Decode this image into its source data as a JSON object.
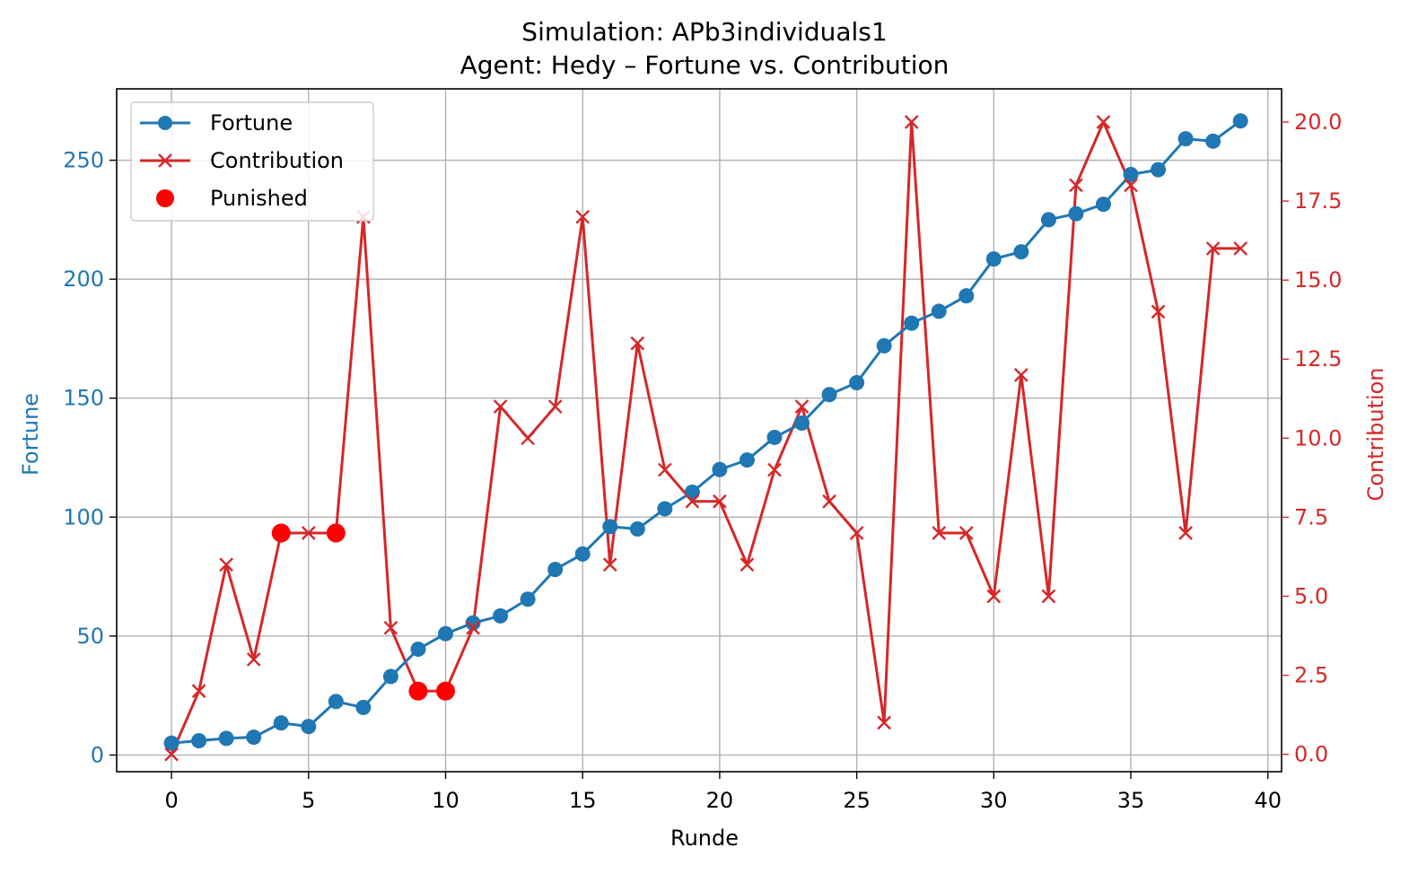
{
  "chart_data": {
    "type": "line",
    "title_line1": "Simulation: APb3individuals1",
    "title_line2": "Agent: Hedy – Fortune vs. Contribution",
    "xlabel": "Runde",
    "ylabel_left": "Fortune",
    "ylabel_right": "Contribution",
    "xlim": [
      -2,
      40.5
    ],
    "ylim_left": [
      -7,
      280
    ],
    "ylim_right": [
      -0.55,
      21.05
    ],
    "x_ticks": [
      0,
      5,
      10,
      15,
      20,
      25,
      30,
      35,
      40
    ],
    "y_left_ticks": [
      0,
      50,
      100,
      150,
      200,
      250
    ],
    "y_right_ticks": [
      0.0,
      2.5,
      5.0,
      7.5,
      10.0,
      12.5,
      15.0,
      17.5,
      20.0
    ],
    "grid": true,
    "legend_position": "upper-left",
    "colors": {
      "fortune": "#1f77b4",
      "contribution": "#d62728",
      "punished": "#ff0000"
    },
    "x": [
      0,
      1,
      2,
      3,
      4,
      5,
      6,
      7,
      8,
      9,
      10,
      11,
      12,
      13,
      14,
      15,
      16,
      17,
      18,
      19,
      20,
      21,
      22,
      23,
      24,
      25,
      26,
      27,
      28,
      29,
      30,
      31,
      32,
      33,
      34,
      35,
      36,
      37,
      38,
      39
    ],
    "series": [
      {
        "name": "Fortune",
        "axis": "left",
        "marker": "circle",
        "values": [
          5,
          6,
          7,
          7.5,
          13.5,
          12,
          22.5,
          20,
          33,
          44.5,
          51,
          55.5,
          58.5,
          65.5,
          78,
          84.5,
          96,
          95,
          103.5,
          110.5,
          120,
          124,
          133.5,
          139.5,
          151.5,
          156.5,
          172,
          181.5,
          186.5,
          193,
          208.5,
          211.5,
          225,
          227.5,
          231.5,
          244,
          246,
          259,
          258,
          266.5
        ]
      },
      {
        "name": "Contribution",
        "axis": "right",
        "marker": "x",
        "values": [
          0,
          2,
          6,
          3,
          7,
          7,
          7,
          17,
          4,
          2,
          2,
          4,
          11,
          10,
          11,
          17,
          6,
          13,
          9,
          8,
          8,
          6,
          9,
          11,
          8,
          7,
          1,
          20,
          7,
          7,
          5,
          12,
          5,
          18,
          20,
          18,
          14,
          7,
          16,
          16
        ]
      },
      {
        "name": "Punished",
        "axis": "right",
        "marker": "filled-circle",
        "points": [
          [
            4,
            7
          ],
          [
            6,
            7
          ],
          [
            9,
            2
          ],
          [
            10,
            2
          ]
        ]
      }
    ]
  }
}
